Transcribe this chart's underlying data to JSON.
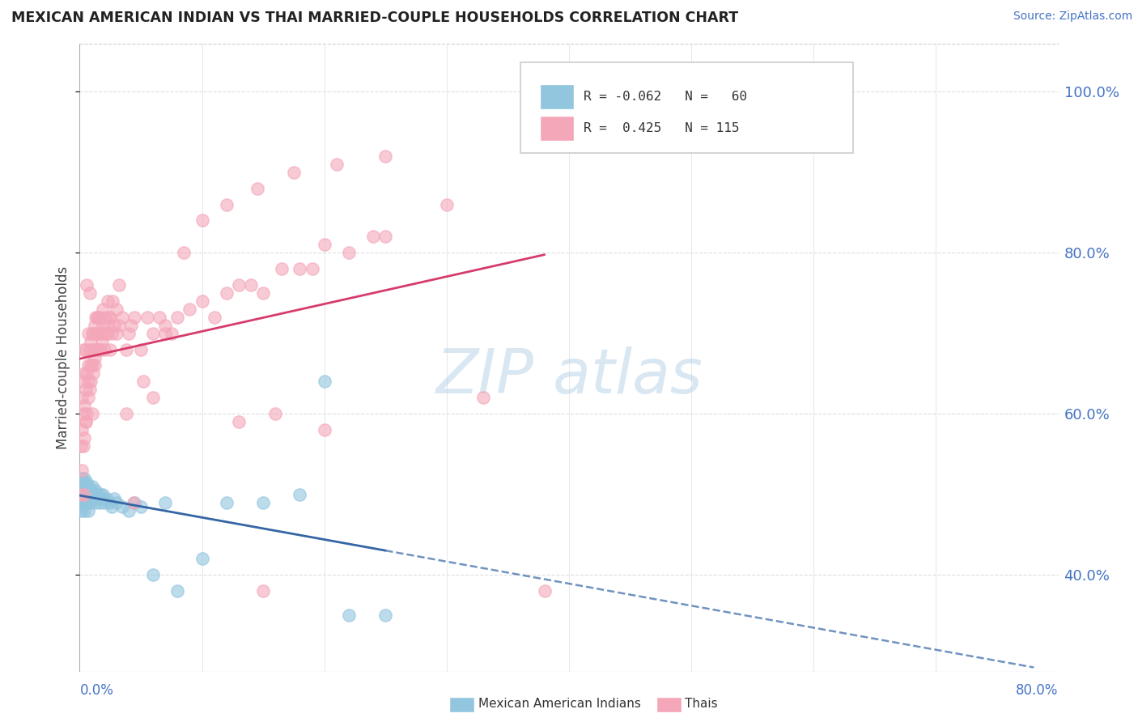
{
  "title": "MEXICAN AMERICAN INDIAN VS THAI MARRIED-COUPLE HOUSEHOLDS CORRELATION CHART",
  "source": "Source: ZipAtlas.com",
  "ylabel": "Married-couple Households",
  "y_ticks": [
    "40.0%",
    "60.0%",
    "80.0%",
    "100.0%"
  ],
  "y_tick_vals": [
    0.4,
    0.6,
    0.8,
    1.0
  ],
  "legend_blue_r": -0.062,
  "legend_blue_n": 60,
  "legend_pink_r": 0.425,
  "legend_pink_n": 115,
  "blue_color": "#92C5DE",
  "pink_color": "#F4A7B9",
  "blue_line_color": "#3465A4",
  "pink_line_color": "#D63C6B",
  "watermark_color": "#B8D4E8",
  "xlim": [
    0.0,
    0.8
  ],
  "ylim": [
    0.28,
    1.06
  ],
  "background_color": "#FFFFFF",
  "grid_color": "#DDDDDD",
  "blue_scatter_x": [
    0.001,
    0.001,
    0.001,
    0.001,
    0.002,
    0.002,
    0.002,
    0.002,
    0.003,
    0.003,
    0.003,
    0.003,
    0.004,
    0.004,
    0.004,
    0.004,
    0.005,
    0.005,
    0.005,
    0.006,
    0.006,
    0.006,
    0.007,
    0.007,
    0.007,
    0.008,
    0.008,
    0.009,
    0.009,
    0.01,
    0.01,
    0.011,
    0.012,
    0.013,
    0.014,
    0.015,
    0.016,
    0.017,
    0.018,
    0.019,
    0.02,
    0.022,
    0.024,
    0.026,
    0.028,
    0.03,
    0.035,
    0.04,
    0.045,
    0.05,
    0.06,
    0.07,
    0.08,
    0.1,
    0.12,
    0.15,
    0.18,
    0.2,
    0.22,
    0.25
  ],
  "blue_scatter_y": [
    0.5,
    0.51,
    0.49,
    0.48,
    0.505,
    0.495,
    0.52,
    0.485,
    0.51,
    0.5,
    0.49,
    0.515,
    0.505,
    0.495,
    0.48,
    0.52,
    0.5,
    0.51,
    0.49,
    0.505,
    0.49,
    0.515,
    0.495,
    0.51,
    0.48,
    0.5,
    0.49,
    0.505,
    0.495,
    0.5,
    0.51,
    0.495,
    0.49,
    0.505,
    0.5,
    0.495,
    0.49,
    0.5,
    0.495,
    0.5,
    0.49,
    0.495,
    0.49,
    0.485,
    0.495,
    0.49,
    0.485,
    0.48,
    0.49,
    0.485,
    0.4,
    0.49,
    0.38,
    0.42,
    0.49,
    0.49,
    0.5,
    0.64,
    0.35,
    0.35
  ],
  "pink_scatter_x": [
    0.001,
    0.001,
    0.002,
    0.002,
    0.002,
    0.003,
    0.003,
    0.003,
    0.004,
    0.004,
    0.004,
    0.005,
    0.005,
    0.005,
    0.006,
    0.006,
    0.007,
    0.007,
    0.007,
    0.008,
    0.008,
    0.009,
    0.009,
    0.01,
    0.01,
    0.011,
    0.011,
    0.012,
    0.012,
    0.013,
    0.013,
    0.014,
    0.014,
    0.015,
    0.015,
    0.016,
    0.017,
    0.018,
    0.019,
    0.02,
    0.021,
    0.022,
    0.023,
    0.024,
    0.025,
    0.026,
    0.028,
    0.03,
    0.032,
    0.035,
    0.038,
    0.04,
    0.042,
    0.045,
    0.05,
    0.055,
    0.06,
    0.065,
    0.07,
    0.075,
    0.08,
    0.09,
    0.1,
    0.11,
    0.12,
    0.13,
    0.14,
    0.15,
    0.165,
    0.18,
    0.2,
    0.22,
    0.24,
    0.01,
    0.012,
    0.015,
    0.018,
    0.022,
    0.025,
    0.03,
    0.008,
    0.006,
    0.004,
    0.003,
    0.005,
    0.007,
    0.009,
    0.011,
    0.013,
    0.016,
    0.019,
    0.023,
    0.027,
    0.032,
    0.038,
    0.044,
    0.052,
    0.06,
    0.07,
    0.085,
    0.1,
    0.12,
    0.145,
    0.175,
    0.21,
    0.25,
    0.3,
    0.25,
    0.19,
    0.16,
    0.13,
    0.38,
    0.15,
    0.2,
    0.33
  ],
  "pink_scatter_y": [
    0.56,
    0.5,
    0.58,
    0.53,
    0.62,
    0.6,
    0.56,
    0.64,
    0.57,
    0.61,
    0.65,
    0.59,
    0.63,
    0.68,
    0.6,
    0.65,
    0.62,
    0.66,
    0.7,
    0.63,
    0.68,
    0.64,
    0.69,
    0.66,
    0.7,
    0.65,
    0.7,
    0.67,
    0.71,
    0.68,
    0.72,
    0.68,
    0.72,
    0.68,
    0.72,
    0.7,
    0.68,
    0.7,
    0.71,
    0.68,
    0.72,
    0.7,
    0.71,
    0.72,
    0.68,
    0.7,
    0.71,
    0.7,
    0.71,
    0.72,
    0.68,
    0.7,
    0.71,
    0.72,
    0.68,
    0.72,
    0.7,
    0.72,
    0.71,
    0.7,
    0.72,
    0.73,
    0.74,
    0.72,
    0.75,
    0.76,
    0.76,
    0.75,
    0.78,
    0.78,
    0.81,
    0.8,
    0.82,
    0.6,
    0.66,
    0.68,
    0.69,
    0.7,
    0.72,
    0.73,
    0.75,
    0.76,
    0.5,
    0.68,
    0.59,
    0.64,
    0.66,
    0.68,
    0.7,
    0.72,
    0.73,
    0.74,
    0.74,
    0.76,
    0.6,
    0.49,
    0.64,
    0.62,
    0.7,
    0.8,
    0.84,
    0.86,
    0.88,
    0.9,
    0.91,
    0.92,
    0.86,
    0.82,
    0.78,
    0.6,
    0.59,
    0.38,
    0.38,
    0.58,
    0.62
  ]
}
